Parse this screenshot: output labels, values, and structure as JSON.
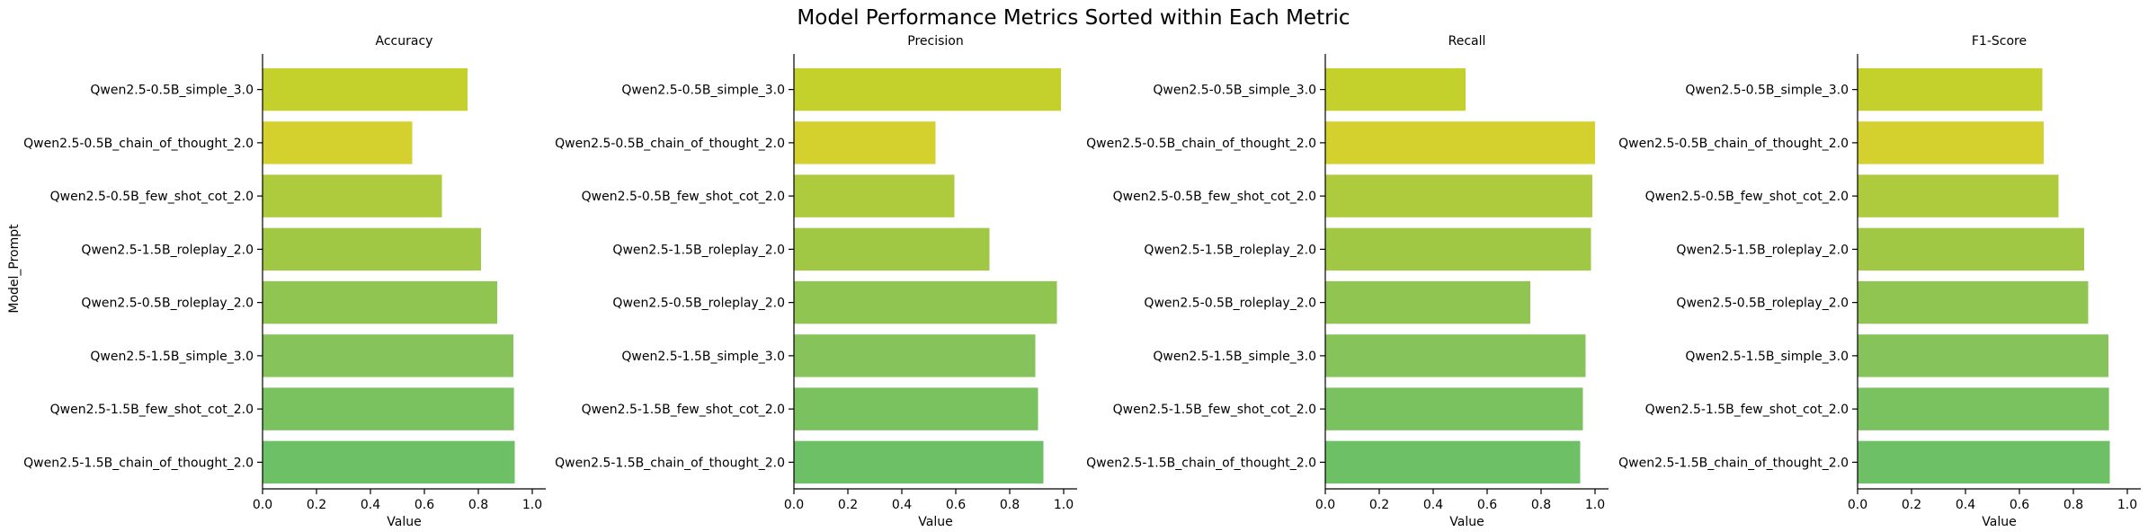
{
  "chart_data": {
    "title": "Model Performance Metrics Sorted within Each Metric",
    "type": "bar",
    "orientation": "horizontal",
    "ylabel": "Model_Prompt",
    "xlabel": "Value",
    "xlim": [
      0,
      1.05
    ],
    "xticks": [
      "0.0",
      "0.2",
      "0.4",
      "0.6",
      "0.8",
      "1.0"
    ],
    "grid": false,
    "legend": "none",
    "categories": [
      "Qwen2.5-0.5B_simple_3.0",
      "Qwen2.5-0.5B_chain_of_thought_2.0",
      "Qwen2.5-0.5B_few_shot_cot_2.0",
      "Qwen2.5-1.5B_roleplay_2.0",
      "Qwen2.5-0.5B_roleplay_2.0",
      "Qwen2.5-1.5B_simple_3.0",
      "Qwen2.5-1.5B_few_shot_cot_2.0",
      "Qwen2.5-1.5B_chain_of_thought_2.0"
    ],
    "bar_colors": [
      "#c4d02c",
      "#d4d12e",
      "#aeca3d",
      "#a0c845",
      "#90c552",
      "#86c35a",
      "#7ac160",
      "#6ec067"
    ],
    "panels": [
      {
        "title": "Accuracy",
        "values": [
          0.76,
          0.555,
          0.665,
          0.81,
          0.87,
          0.93,
          0.932,
          0.935
        ]
      },
      {
        "title": "Precision",
        "values": [
          0.99,
          0.525,
          0.595,
          0.725,
          0.975,
          0.895,
          0.905,
          0.925
        ]
      },
      {
        "title": "Recall",
        "values": [
          0.52,
          1.0,
          0.99,
          0.985,
          0.76,
          0.965,
          0.955,
          0.945
        ]
      },
      {
        "title": "F1-Score",
        "values": [
          0.685,
          0.69,
          0.745,
          0.84,
          0.855,
          0.93,
          0.932,
          0.935
        ]
      }
    ]
  }
}
